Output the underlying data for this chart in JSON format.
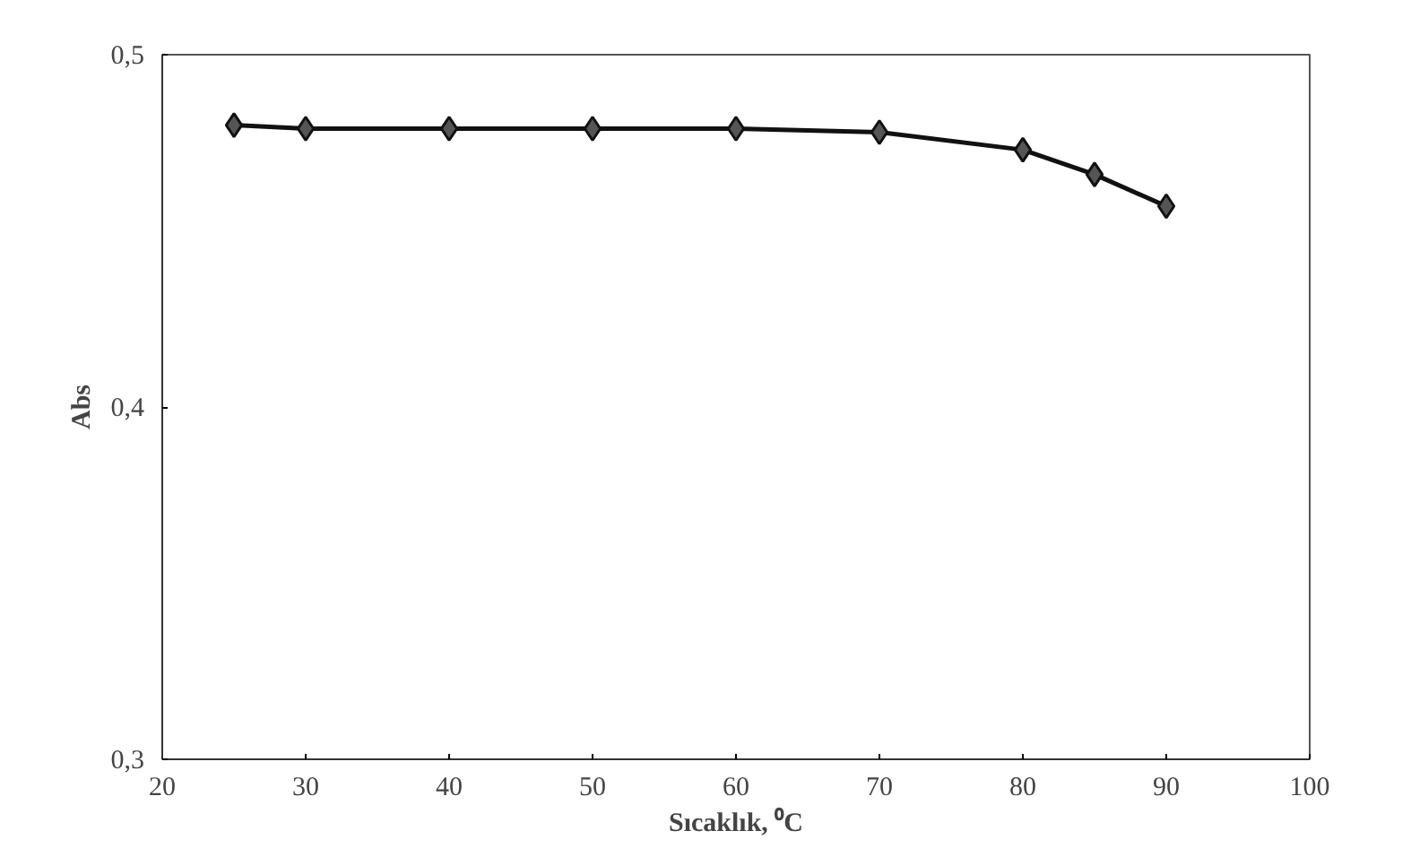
{
  "chart_data": {
    "type": "line",
    "xlabel": "Sıcaklık, ⁰C",
    "ylabel": "Abs",
    "x": [
      25,
      30,
      40,
      50,
      60,
      70,
      80,
      85,
      90
    ],
    "series": [
      {
        "color": "#111111",
        "values": [
          0.48,
          0.479,
          0.479,
          0.479,
          0.479,
          0.478,
          0.473,
          0.466,
          0.457
        ]
      }
    ],
    "xlim": [
      20,
      100
    ],
    "xticks": [
      20,
      30,
      40,
      50,
      60,
      70,
      80,
      90,
      100
    ],
    "ylim": [
      0.3,
      0.5
    ],
    "yticks": [
      {
        "value": 0.3,
        "label": "0,3"
      },
      {
        "value": 0.4,
        "label": "0,4"
      },
      {
        "value": 0.5,
        "label": "0,5"
      }
    ],
    "grid": false,
    "marker": "diamond",
    "line_style": "solid"
  }
}
